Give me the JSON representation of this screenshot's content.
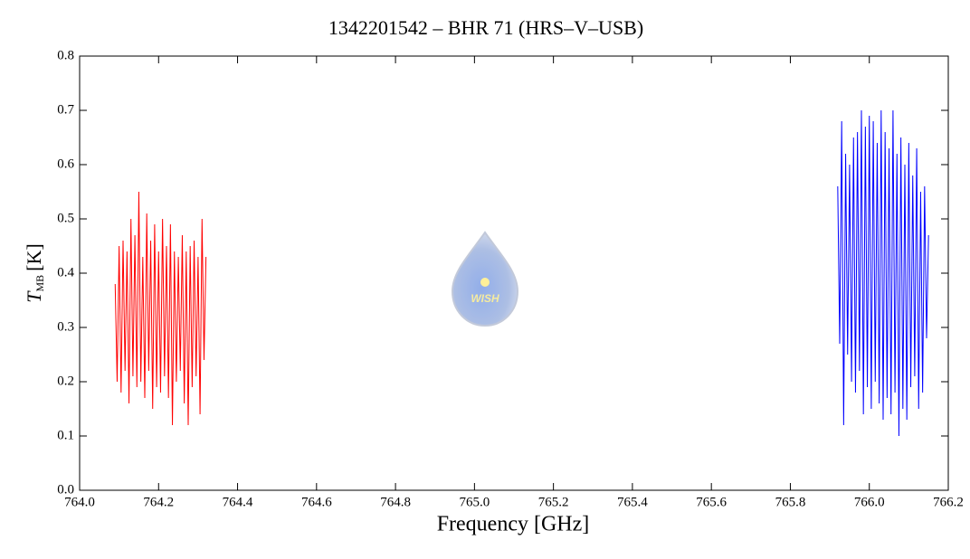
{
  "chart_data": {
    "type": "line",
    "title": "1342201542 – BHR 71 (HRS–V–USB)",
    "xlabel": "Frequency [GHz]",
    "ylabel": "T",
    "ylabel_sub": "MB",
    "ylabel_unit": "[K]",
    "logo_text": "WISH",
    "xlim": [
      764.0,
      766.2
    ],
    "xticks": [
      {
        "value": 764.0,
        "label": "764.0"
      },
      {
        "value": 764.2,
        "label": "764.2"
      },
      {
        "value": 764.4,
        "label": "764.4"
      },
      {
        "value": 764.6,
        "label": "764.6"
      },
      {
        "value": 764.8,
        "label": "764.8"
      },
      {
        "value": 765.0,
        "label": "765.0"
      },
      {
        "value": 765.2,
        "label": "765.2"
      },
      {
        "value": 765.4,
        "label": "765.4"
      },
      {
        "value": 765.6,
        "label": "765.6"
      },
      {
        "value": 765.8,
        "label": "765.8"
      },
      {
        "value": 766.0,
        "label": "766.0"
      },
      {
        "value": 766.2,
        "label": "766.2"
      }
    ],
    "ylim": [
      0,
      0.8
    ],
    "yticks": [
      {
        "value": 0,
        "label": "0.0"
      },
      0.1,
      0.2,
      0.3,
      0.4,
      0.5,
      0.6,
      0.7,
      0.8
    ],
    "series": [
      {
        "color": "#ff0000",
        "x": [
          764.09,
          764.095,
          764.1,
          764.105,
          764.11,
          764.115,
          764.12,
          764.125,
          764.13,
          764.135,
          764.14,
          764.145,
          764.15,
          764.155,
          764.16,
          764.165,
          764.17,
          764.175,
          764.18,
          764.185,
          764.19,
          764.195,
          764.2,
          764.205,
          764.21,
          764.215,
          764.22,
          764.225,
          764.23,
          764.235,
          764.24,
          764.245,
          764.25,
          764.255,
          764.26,
          764.265,
          764.27,
          764.275,
          764.28,
          764.285,
          764.29,
          764.295,
          764.3,
          764.305,
          764.31,
          764.315,
          764.32
        ],
        "values": [
          0.38,
          0.2,
          0.45,
          0.18,
          0.46,
          0.22,
          0.44,
          0.16,
          0.5,
          0.21,
          0.47,
          0.19,
          0.55,
          0.2,
          0.43,
          0.17,
          0.51,
          0.22,
          0.46,
          0.15,
          0.49,
          0.19,
          0.44,
          0.18,
          0.5,
          0.21,
          0.45,
          0.17,
          0.49,
          0.12,
          0.44,
          0.2,
          0.43,
          0.22,
          0.47,
          0.16,
          0.44,
          0.12,
          0.45,
          0.19,
          0.46,
          0.21,
          0.43,
          0.14,
          0.5,
          0.24,
          0.43
        ]
      },
      {
        "color": "#0000ff",
        "x": [
          765.92,
          765.925,
          765.93,
          765.935,
          765.94,
          765.945,
          765.95,
          765.955,
          765.96,
          765.965,
          765.97,
          765.975,
          765.98,
          765.985,
          765.99,
          765.995,
          766.0,
          766.005,
          766.01,
          766.015,
          766.02,
          766.025,
          766.03,
          766.035,
          766.04,
          766.045,
          766.05,
          766.055,
          766.06,
          766.065,
          766.07,
          766.075,
          766.08,
          766.085,
          766.09,
          766.095,
          766.1,
          766.105,
          766.11,
          766.115,
          766.12,
          766.125,
          766.13,
          766.135,
          766.14,
          766.145,
          766.15
        ],
        "values": [
          0.56,
          0.27,
          0.68,
          0.12,
          0.62,
          0.25,
          0.6,
          0.2,
          0.65,
          0.18,
          0.66,
          0.22,
          0.7,
          0.14,
          0.67,
          0.19,
          0.69,
          0.15,
          0.68,
          0.2,
          0.64,
          0.16,
          0.7,
          0.13,
          0.66,
          0.17,
          0.63,
          0.14,
          0.7,
          0.18,
          0.62,
          0.1,
          0.65,
          0.15,
          0.6,
          0.13,
          0.64,
          0.19,
          0.58,
          0.21,
          0.63,
          0.15,
          0.55,
          0.18,
          0.56,
          0.28,
          0.47
        ]
      }
    ]
  }
}
